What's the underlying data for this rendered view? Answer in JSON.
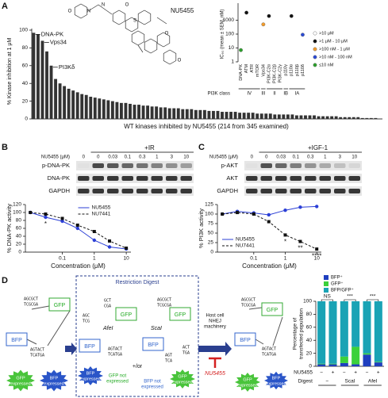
{
  "panel_labels": [
    "A",
    "B",
    "C",
    "D"
  ],
  "compound": "NU5455",
  "molecule_atoms": [
    "O",
    "N",
    "N",
    "S",
    "O",
    "O",
    "O"
  ],
  "chart_data": [
    {
      "type": "bar",
      "ylabel": "% Kinase inhibition at 1 μM",
      "xlabel": "WT kinases inhibited by NU5455 (214 from 345 examined)",
      "categories": [
        null,
        null,
        null,
        null,
        null,
        null,
        null,
        null,
        null,
        null,
        null,
        null,
        null,
        null,
        null,
        null,
        null,
        null,
        null,
        null,
        null,
        null,
        null,
        null,
        null,
        null,
        null,
        null,
        null,
        null,
        null,
        null,
        null,
        null,
        null,
        null,
        null,
        null,
        null,
        null,
        null,
        null,
        null,
        null,
        null,
        null,
        null,
        null,
        null,
        null,
        null,
        null,
        null,
        null,
        null,
        null,
        null,
        null,
        null,
        null,
        null,
        null,
        null,
        null,
        null,
        null,
        null,
        null,
        null,
        null,
        null,
        null,
        null,
        null,
        null,
        null,
        null,
        null,
        null,
        null
      ],
      "values": [
        97,
        95,
        88,
        76,
        60,
        45,
        40,
        37,
        34,
        32,
        30,
        28,
        27,
        25,
        24,
        23,
        22,
        21,
        20,
        19,
        18,
        18,
        17,
        16,
        16,
        15,
        15,
        14,
        14,
        13,
        13,
        12,
        12,
        12,
        11,
        11,
        11,
        10,
        10,
        10,
        9,
        9,
        9,
        8,
        8,
        8,
        8,
        7,
        7,
        7,
        7,
        6,
        6,
        6,
        6,
        5,
        5,
        5,
        5,
        5,
        4,
        4,
        4,
        4,
        4,
        3,
        3,
        3,
        3,
        3,
        2,
        2,
        2,
        2,
        2,
        1,
        1,
        1,
        1,
        0
      ],
      "color": "#333333",
      "ylim": [
        0,
        100
      ],
      "yticks": [
        0,
        20,
        40,
        60,
        80,
        100
      ],
      "annotations": [
        "DNA-PK",
        "Vps34",
        "PI3Kδ"
      ]
    },
    {
      "type": "scatter",
      "ylabel": "IC₉₀ (mean ± SEM, nM)",
      "log": true,
      "categories": [
        "DNA-PK",
        "ATM",
        "ATR",
        "mTOR",
        "Vps34",
        "PI3K-C2α",
        "PI3K-C2β",
        "PI3K-C2γ",
        "p110γ",
        "p110α",
        "p110β",
        "p110δ"
      ],
      "series": [
        {
          "name": ">10 μM",
          "color": "#ffffff",
          "values": [
            null,
            null,
            null,
            null,
            null,
            null,
            null,
            null,
            null,
            null,
            null,
            null
          ]
        },
        {
          "name": ">1 μM - 10 μM",
          "color": "#111111",
          "values": [
            null,
            3500,
            null,
            null,
            null,
            2000,
            null,
            null,
            null,
            2000,
            null,
            null
          ]
        },
        {
          "name": ">100 nM - 1 μM",
          "color": "#f39c2b",
          "values": [
            null,
            null,
            null,
            null,
            500,
            null,
            null,
            null,
            null,
            null,
            null,
            null
          ]
        },
        {
          "name": ">10 nM - 100 nM",
          "color": "#2b4bd6",
          "values": [
            null,
            null,
            null,
            null,
            null,
            null,
            null,
            null,
            null,
            null,
            null,
            90
          ]
        },
        {
          "name": "≤10 nM",
          "color": "#2ca02c",
          "values": [
            7,
            null,
            null,
            null,
            null,
            null,
            null,
            null,
            null,
            null,
            null,
            null
          ]
        }
      ],
      "ylim": [
        1,
        10000
      ],
      "yticks": [
        1,
        10,
        100,
        1000
      ],
      "class_axis_label": "PI3K class",
      "classes": [
        "IV",
        "III",
        "II",
        "IB",
        "IA"
      ]
    },
    {
      "type": "line",
      "ylabel": "% DNA-PK activity",
      "xlabel": "Concentration (μM)",
      "xlog": true,
      "x": [
        0.01,
        0.03,
        0.1,
        0.3,
        1,
        3,
        10
      ],
      "xlim": [
        0.007,
        14
      ],
      "xticks": [
        0.1,
        1,
        10
      ],
      "ylim": [
        0,
        120
      ],
      "yticks": [
        0,
        20,
        40,
        60,
        80,
        100,
        120
      ],
      "legend": "upper right",
      "series": [
        {
          "name": "NU5455",
          "color": "#2b3fd6",
          "marker": "circle",
          "values": [
            100,
            88,
            78,
            60,
            30,
            13,
            8
          ]
        },
        {
          "name": "NU7441",
          "color": "#111111",
          "marker": "square",
          "dash": true,
          "values": [
            100,
            96,
            85,
            68,
            52,
            28,
            10
          ]
        }
      ],
      "annotations": [
        "*"
      ]
    },
    {
      "type": "line",
      "ylabel": "% PI3K activity",
      "xlabel": "Concentration (μM)",
      "xlog": true,
      "x": [
        0.01,
        0.03,
        0.1,
        0.3,
        1,
        3,
        10
      ],
      "xlim": [
        0.007,
        14
      ],
      "xticks": [
        0.1,
        1,
        10
      ],
      "ylim": [
        0,
        125
      ],
      "yticks": [
        0,
        25,
        50,
        75,
        100,
        125
      ],
      "legend": "lower left",
      "series": [
        {
          "name": "NU5455",
          "color": "#2b3fd6",
          "marker": "circle",
          "values": [
            100,
            107,
            103,
            98,
            110,
            118,
            120
          ]
        },
        {
          "name": "NU7441",
          "color": "#111111",
          "marker": "square",
          "dash": true,
          "values": [
            100,
            104,
            100,
            80,
            45,
            28,
            8
          ]
        }
      ],
      "annotations": [
        "*",
        "**",
        "****"
      ]
    },
    {
      "type": "stacked",
      "ylabel": [
        "Percentage of",
        "transfected population"
      ],
      "categories": [
        null,
        null,
        null,
        null,
        null,
        null
      ],
      "series": [
        {
          "name": "BFP⁺",
          "color": "#1f3fbf",
          "values": [
            3,
            3,
            5,
            3,
            18,
            6
          ]
        },
        {
          "name": "GFP⁺",
          "color": "#3bd13b",
          "values": [
            1,
            1,
            10,
            27,
            2,
            1
          ]
        },
        {
          "name": "BFP/GFP⁺",
          "color": "#1aa3b5",
          "values": [
            96,
            96,
            85,
            70,
            80,
            93
          ]
        }
      ],
      "ylim": [
        0,
        100
      ],
      "yticks": [
        0,
        20,
        40,
        60,
        80,
        100
      ],
      "significance": [
        "NS",
        "***",
        "***"
      ],
      "rows": [
        {
          "name": "NU5455",
          "labels": [
            "−",
            "+",
            "−",
            "+",
            "−",
            "+"
          ]
        },
        {
          "name": "Digest",
          "labels": [
            "−",
            "ScaI",
            "AfeI"
          ]
        }
      ]
    }
  ],
  "blots": [
    {
      "treatment": "+IR",
      "dose_label": "NU5455 (μM)",
      "doses": [
        0,
        0,
        0.03,
        0.1,
        0.3,
        1,
        3,
        10
      ],
      "rows": [
        "p-DNA-PK",
        "DNA-PK",
        "GAPDH"
      ]
    },
    {
      "treatment": "+IGF-1",
      "dose_label": "NU5455 (μM)",
      "doses": [
        0,
        0,
        0.03,
        0.1,
        0.3,
        1,
        3,
        10
      ],
      "rows": [
        "p-AKT",
        "AKT",
        "GAPDH"
      ]
    }
  ],
  "diagram": {
    "title": "Restriction Digest",
    "genes": [
      "GFP",
      "BFP"
    ],
    "top_site": [
      "AGCGCT",
      "TCGCGA"
    ],
    "bottom_site": [
      "AGTACT",
      "TCATGA"
    ],
    "enzymes": [
      "AfeI",
      "ScaI"
    ],
    "afe_cut": [
      "AGC",
      "TCG",
      "GCT",
      "CGA"
    ],
    "sca_cut": [
      "AGT",
      "TCA",
      "ACT",
      "TGA"
    ],
    "outcomes": [
      [
        "GFP",
        "expressed"
      ],
      [
        "BFP",
        "expressed"
      ],
      [
        "GFP not",
        "expressed"
      ],
      [
        "BFP not",
        "expressed"
      ]
    ],
    "connector": "+/or",
    "repair": [
      "Host cell",
      "NHEJ",
      "machinery"
    ],
    "inhibitor": "NU5455"
  }
}
